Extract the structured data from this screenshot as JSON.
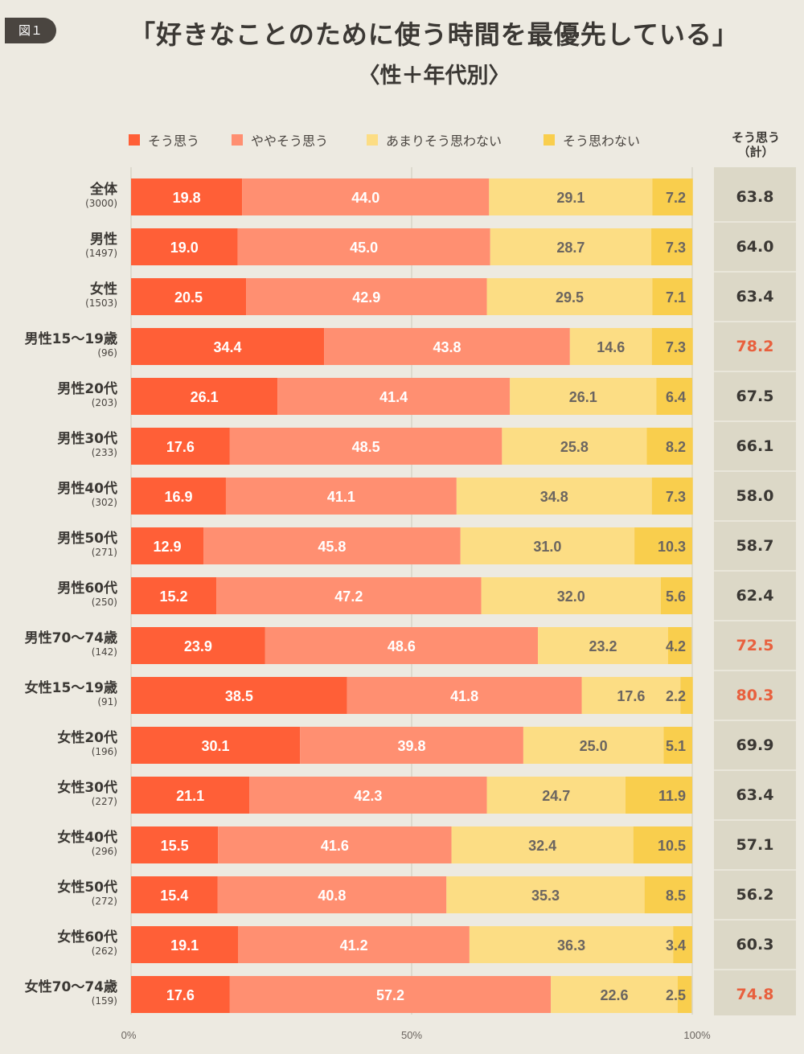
{
  "figure_label": "図１",
  "chart_data": {
    "type": "bar",
    "orientation": "horizontal",
    "stacked": true,
    "title": "「好きなことのために使う時間を最優先している」",
    "subtitle": "〈性＋年代別〉",
    "total_column_title": "そう思う",
    "total_column_subtitle": "（計）",
    "xlim": [
      0,
      100
    ],
    "xticks": [
      "0%",
      "50%",
      "100%"
    ],
    "series": [
      {
        "name": "そう思う",
        "color": "#FF5F37"
      },
      {
        "name": "ややそう思う",
        "color": "#FF8F71"
      },
      {
        "name": "あまりそう思わない",
        "color": "#FCDD84"
      },
      {
        "name": "そう思わない",
        "color": "#F9CE4D"
      }
    ],
    "rows": [
      {
        "label": "全体",
        "n": "(3000)",
        "values": [
          19.8,
          44.0,
          29.1,
          7.2
        ],
        "total": "63.8",
        "highlight": false
      },
      {
        "label": "男性",
        "n": "(1497)",
        "values": [
          19.0,
          45.0,
          28.7,
          7.3
        ],
        "total": "64.0",
        "highlight": false
      },
      {
        "label": "女性",
        "n": "(1503)",
        "values": [
          20.5,
          42.9,
          29.5,
          7.1
        ],
        "total": "63.4",
        "highlight": false
      },
      {
        "label": "男性15〜19歳",
        "n": "(96)",
        "values": [
          34.4,
          43.8,
          14.6,
          7.3
        ],
        "total": "78.2",
        "highlight": true
      },
      {
        "label": "男性20代",
        "n": "(203)",
        "values": [
          26.1,
          41.4,
          26.1,
          6.4
        ],
        "total": "67.5",
        "highlight": false
      },
      {
        "label": "男性30代",
        "n": "(233)",
        "values": [
          17.6,
          48.5,
          25.8,
          8.2
        ],
        "total": "66.1",
        "highlight": false
      },
      {
        "label": "男性40代",
        "n": "(302)",
        "values": [
          16.9,
          41.1,
          34.8,
          7.3
        ],
        "total": "58.0",
        "highlight": false
      },
      {
        "label": "男性50代",
        "n": "(271)",
        "values": [
          12.9,
          45.8,
          31.0,
          10.3
        ],
        "total": "58.7",
        "highlight": false
      },
      {
        "label": "男性60代",
        "n": "(250)",
        "values": [
          15.2,
          47.2,
          32.0,
          5.6
        ],
        "total": "62.4",
        "highlight": false
      },
      {
        "label": "男性70〜74歳",
        "n": "(142)",
        "values": [
          23.9,
          48.6,
          23.2,
          4.2
        ],
        "total": "72.5",
        "highlight": true
      },
      {
        "label": "女性15〜19歳",
        "n": "(91)",
        "values": [
          38.5,
          41.8,
          17.6,
          2.2
        ],
        "total": "80.3",
        "highlight": true
      },
      {
        "label": "女性20代",
        "n": "(196)",
        "values": [
          30.1,
          39.8,
          25.0,
          5.1
        ],
        "total": "69.9",
        "highlight": false
      },
      {
        "label": "女性30代",
        "n": "(227)",
        "values": [
          21.1,
          42.3,
          24.7,
          11.9
        ],
        "total": "63.4",
        "highlight": false
      },
      {
        "label": "女性40代",
        "n": "(296)",
        "values": [
          15.5,
          41.6,
          32.4,
          10.5
        ],
        "total": "57.1",
        "highlight": false
      },
      {
        "label": "女性50代",
        "n": "(272)",
        "values": [
          15.4,
          40.8,
          35.3,
          8.5
        ],
        "total": "56.2",
        "highlight": false
      },
      {
        "label": "女性60代",
        "n": "(262)",
        "values": [
          19.1,
          41.2,
          36.3,
          3.4
        ],
        "total": "60.3",
        "highlight": false
      },
      {
        "label": "女性70〜74歳",
        "n": "(159)",
        "values": [
          17.6,
          57.2,
          22.6,
          2.5
        ],
        "total": "74.8",
        "highlight": true
      }
    ]
  },
  "colors": {
    "text": "#3B3834",
    "highlight": "#E8603E",
    "label_light": "#FFFFFF",
    "label_dark": "#6B6560",
    "gridline": "#D8D4C8"
  }
}
